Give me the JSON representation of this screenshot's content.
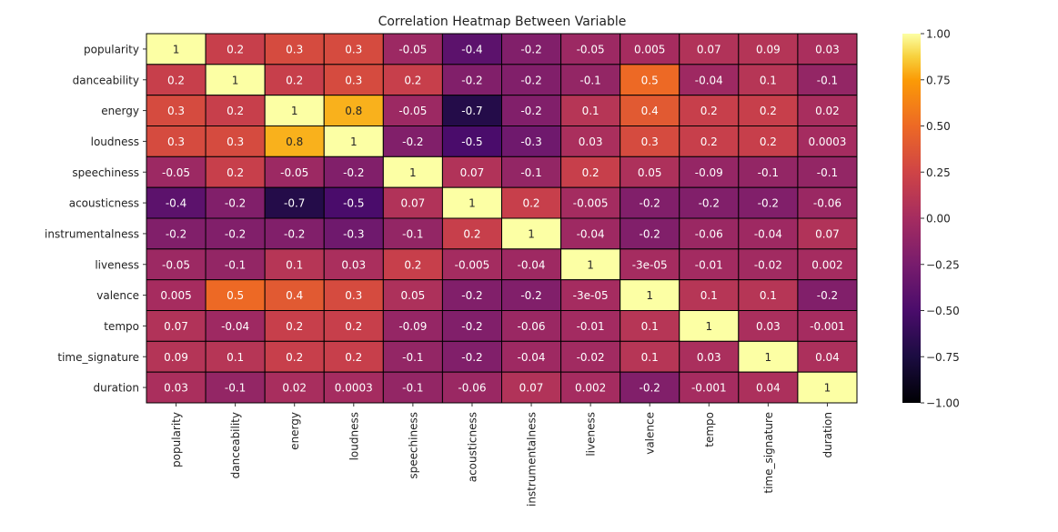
{
  "chart_data": {
    "type": "heatmap",
    "title": "Correlation Heatmap Between Variable",
    "xlabel": "",
    "ylabel": "",
    "rows": [
      "popularity",
      "danceability",
      "energy",
      "loudness",
      "speechiness",
      "acousticness",
      "instrumentalness",
      "liveness",
      "valence",
      "tempo",
      "time_signature",
      "duration"
    ],
    "cols": [
      "popularity",
      "danceability",
      "energy",
      "loudness",
      "speechiness",
      "acousticness",
      "instrumentalness",
      "liveness",
      "valence",
      "tempo",
      "time_signature",
      "duration"
    ],
    "values": [
      [
        1,
        0.2,
        0.3,
        0.3,
        -0.05,
        -0.4,
        -0.2,
        -0.05,
        0.005,
        0.07,
        0.09,
        0.03
      ],
      [
        0.2,
        1,
        0.2,
        0.3,
        0.2,
        -0.2,
        -0.2,
        -0.1,
        0.5,
        -0.04,
        0.1,
        -0.1
      ],
      [
        0.3,
        0.2,
        1,
        0.8,
        -0.05,
        -0.7,
        -0.2,
        0.1,
        0.4,
        0.2,
        0.2,
        0.02
      ],
      [
        0.3,
        0.3,
        0.8,
        1,
        -0.2,
        -0.5,
        -0.3,
        0.03,
        0.3,
        0.2,
        0.2,
        0.0003
      ],
      [
        -0.05,
        0.2,
        -0.05,
        -0.2,
        1,
        0.07,
        -0.1,
        0.2,
        0.05,
        -0.09,
        -0.1,
        -0.1
      ],
      [
        -0.4,
        -0.2,
        -0.7,
        -0.5,
        0.07,
        1,
        0.2,
        -0.005,
        -0.2,
        -0.2,
        -0.2,
        -0.06
      ],
      [
        -0.2,
        -0.2,
        -0.2,
        -0.3,
        -0.1,
        0.2,
        1,
        -0.04,
        -0.2,
        -0.06,
        -0.04,
        0.07
      ],
      [
        -0.05,
        -0.1,
        0.1,
        0.03,
        0.2,
        -0.005,
        -0.04,
        1,
        -3e-05,
        -0.01,
        -0.02,
        0.002
      ],
      [
        0.005,
        0.5,
        0.4,
        0.3,
        0.05,
        -0.2,
        -0.2,
        -3e-05,
        1,
        0.1,
        0.1,
        -0.2
      ],
      [
        0.07,
        -0.04,
        0.2,
        0.2,
        -0.09,
        -0.2,
        -0.06,
        -0.01,
        0.1,
        1,
        0.03,
        -0.001
      ],
      [
        0.09,
        0.1,
        0.2,
        0.2,
        -0.1,
        -0.2,
        -0.04,
        -0.02,
        0.1,
        0.03,
        1,
        0.04
      ],
      [
        0.03,
        -0.1,
        0.02,
        0.0003,
        -0.1,
        -0.06,
        0.07,
        0.002,
        -0.2,
        -0.001,
        0.04,
        1
      ]
    ],
    "annotations": [
      [
        "1",
        "0.2",
        "0.3",
        "0.3",
        "-0.05",
        "-0.4",
        "-0.2",
        "-0.05",
        "0.005",
        "0.07",
        "0.09",
        "0.03"
      ],
      [
        "0.2",
        "1",
        "0.2",
        "0.3",
        "0.2",
        "-0.2",
        "-0.2",
        "-0.1",
        "0.5",
        "-0.04",
        "0.1",
        "-0.1"
      ],
      [
        "0.3",
        "0.2",
        "1",
        "0.8",
        "-0.05",
        "-0.7",
        "-0.2",
        "0.1",
        "0.4",
        "0.2",
        "0.2",
        "0.02"
      ],
      [
        "0.3",
        "0.3",
        "0.8",
        "1",
        "-0.2",
        "-0.5",
        "-0.3",
        "0.03",
        "0.3",
        "0.2",
        "0.2",
        "0.0003"
      ],
      [
        "-0.05",
        "0.2",
        "-0.05",
        "-0.2",
        "1",
        "0.07",
        "-0.1",
        "0.2",
        "0.05",
        "-0.09",
        "-0.1",
        "-0.1"
      ],
      [
        "-0.4",
        "-0.2",
        "-0.7",
        "-0.5",
        "0.07",
        "1",
        "0.2",
        "-0.005",
        "-0.2",
        "-0.2",
        "-0.2",
        "-0.06"
      ],
      [
        "-0.2",
        "-0.2",
        "-0.2",
        "-0.3",
        "-0.1",
        "0.2",
        "1",
        "-0.04",
        "-0.2",
        "-0.06",
        "-0.04",
        "0.07"
      ],
      [
        "-0.05",
        "-0.1",
        "0.1",
        "0.03",
        "0.2",
        "-0.005",
        "-0.04",
        "1",
        "-3e-05",
        "-0.01",
        "-0.02",
        "0.002"
      ],
      [
        "0.005",
        "0.5",
        "0.4",
        "0.3",
        "0.05",
        "-0.2",
        "-0.2",
        "-3e-05",
        "1",
        "0.1",
        "0.1",
        "-0.2"
      ],
      [
        "0.07",
        "-0.04",
        "0.2",
        "0.2",
        "-0.09",
        "-0.2",
        "-0.06",
        "-0.01",
        "0.1",
        "1",
        "0.03",
        "-0.001"
      ],
      [
        "0.09",
        "0.1",
        "0.2",
        "0.2",
        "-0.1",
        "-0.2",
        "-0.04",
        "-0.02",
        "0.1",
        "0.03",
        "1",
        "0.04"
      ],
      [
        "0.03",
        "-0.1",
        "0.02",
        "0.0003",
        "-0.1",
        "-0.06",
        "0.07",
        "0.002",
        "-0.2",
        "-0.001",
        "0.04",
        "1"
      ]
    ],
    "colormap": "inferno",
    "colorbar": {
      "range": [
        -1,
        1
      ],
      "ticks": [
        1,
        0.75,
        0.5,
        0.25,
        0,
        -0.25,
        -0.5,
        -0.75,
        -1
      ],
      "tick_labels": [
        "1.00",
        "0.75",
        "0.50",
        "0.25",
        "0.00",
        "−0.25",
        "−0.50",
        "−0.75",
        "−1.00"
      ]
    },
    "cell_border_color": "#000000",
    "grid": false
  }
}
